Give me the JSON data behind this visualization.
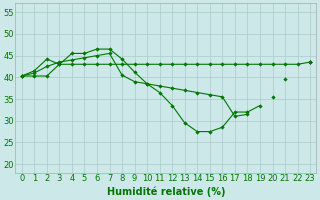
{
  "x": [
    0,
    1,
    2,
    3,
    4,
    5,
    6,
    7,
    8,
    9,
    10,
    11,
    12,
    13,
    14,
    15,
    16,
    17,
    18,
    19,
    20,
    21,
    22,
    23
  ],
  "line1": [
    40.3,
    41.5,
    44.2,
    43.0,
    45.5,
    45.5,
    46.5,
    46.5,
    44.2,
    41.2,
    38.5,
    36.5,
    33.5,
    29.5,
    27.5,
    27.5,
    28.5,
    32.0,
    32.0,
    33.5,
    null,
    39.5,
    null,
    43.5
  ],
  "line2": [
    40.3,
    40.3,
    40.3,
    43.0,
    43.0,
    43.0,
    43.0,
    43.0,
    43.0,
    43.0,
    43.0,
    43.0,
    43.0,
    43.0,
    43.0,
    43.0,
    43.0,
    43.0,
    43.0,
    43.0,
    43.0,
    43.0,
    43.0,
    43.5
  ],
  "line3": [
    40.3,
    41.0,
    42.5,
    43.5,
    44.0,
    44.5,
    45.0,
    45.5,
    40.5,
    39.0,
    38.5,
    38.0,
    37.5,
    37.0,
    36.5,
    36.0,
    35.5,
    31.0,
    31.5,
    null,
    35.5,
    null,
    null,
    43.5
  ],
  "bg_color": "#cce8e8",
  "grid_color": "#aacccc",
  "line_color": "#007700",
  "xlabel": "Humidité relative (%)",
  "yticks": [
    20,
    25,
    30,
    35,
    40,
    45,
    50,
    55
  ],
  "ylim": [
    18,
    57
  ],
  "xlim": [
    -0.5,
    23.5
  ],
  "tick_fontsize": 6,
  "xlabel_fontsize": 7
}
